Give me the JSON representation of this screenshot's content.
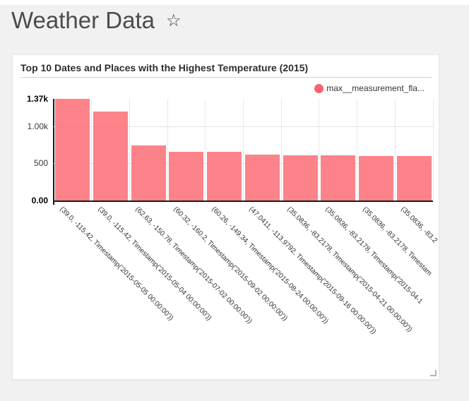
{
  "page": {
    "title": "Weather Data",
    "star_icon": "☆"
  },
  "card": {
    "title": "Top 10 Dates and Places with the Highest Temperature (2015)",
    "legend": {
      "label": "max__measurement_fla...",
      "color": "#fb646b"
    }
  },
  "chart_data": {
    "type": "bar",
    "title": "Top 10 Dates and Places with the Highest Temperature (2015)",
    "legend_entries": [
      "max__measurement_fla..."
    ],
    "legend_position": "top-right",
    "grid": true,
    "xlabel": "",
    "ylabel": "",
    "ylim": [
      0,
      1370
    ],
    "y_ticks": [
      {
        "label": "1.37k",
        "value": 1370,
        "bold": true
      },
      {
        "label": "1.00k",
        "value": 1000,
        "bold": false
      },
      {
        "label": "500",
        "value": 500,
        "bold": false
      },
      {
        "label": "0.00",
        "value": 0,
        "bold": true
      }
    ],
    "grid_values": [
      500,
      1000
    ],
    "categories": [
      "(39.0, -115.42, Timestamp('2015-05-05 00:00:00'))",
      "(39.0, -115.42, Timestamp('2015-05-04 00:00:00'))",
      "(62.63, -150.78, Timestamp('2015-07-02 00:00:00'))",
      "(60.32, -160.2, Timestamp('2015-09-02 00:00:00'))",
      "(60.26, -149.34, Timestamp('2015-08-24 00:00:00'))",
      "(47.0411, -113.9792, Timestamp('2015-09-16 00:00:00'))",
      "(35.0836, -83.2178, Timestamp('2015-04-21 00:00:00'))",
      "(35.0836, -83.2178, Timestamp('2015-04-1",
      "(35.0836, -83.2178, Timestam",
      "(35.0836, -83.2"
    ],
    "series": [
      {
        "name": "max__measurement_fla...",
        "color": "#fb646b",
        "fill": "rgba(251,100,107,0.8)",
        "values": [
          1370,
          1200,
          740,
          660,
          655,
          615,
          612,
          605,
          602,
          600
        ]
      }
    ]
  }
}
